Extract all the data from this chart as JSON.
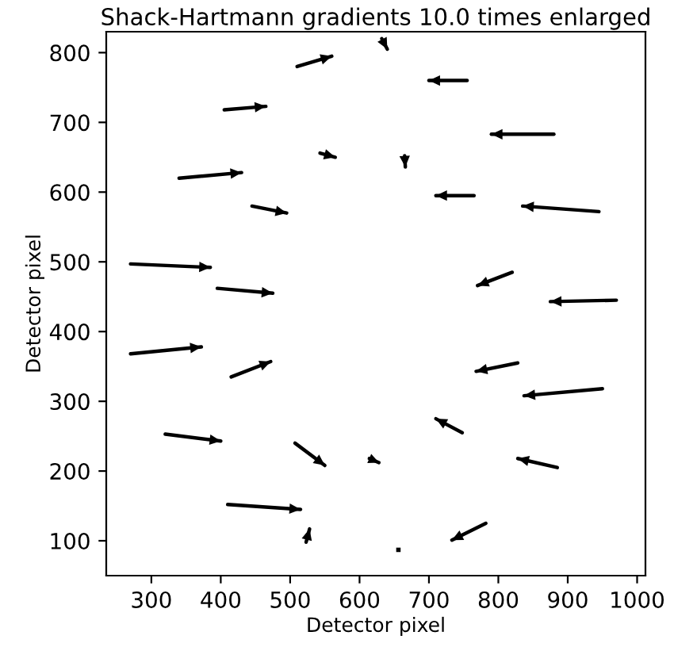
{
  "chart_data": {
    "type": "line",
    "title": "Shack-Hartmann gradients 10.0 times enlarged",
    "xlabel": "Detector pixel",
    "ylabel": "Detector pixel",
    "xlim": [
      235,
      1012
    ],
    "ylim": [
      50,
      830
    ],
    "xticks": [
      300,
      400,
      500,
      600,
      700,
      800,
      900,
      1000
    ],
    "yticks": [
      100,
      200,
      300,
      400,
      500,
      600,
      700,
      800
    ],
    "grid": false,
    "legend": false,
    "marker": "none",
    "line_style": "solid",
    "series": [
      {
        "type": "line",
        "color": "#000000",
        "x": [
          270,
          372
        ],
        "values": [
          368,
          378
        ]
      },
      {
        "type": "line",
        "color": "#000000",
        "x": [
          415,
          472
        ],
        "values": [
          335,
          357
        ]
      },
      {
        "type": "line",
        "color": "#000000",
        "x": [
          320,
          400
        ],
        "values": [
          253,
          243
        ]
      },
      {
        "type": "line",
        "color": "#000000",
        "x": [
          507,
          550
        ],
        "values": [
          240,
          208
        ]
      },
      {
        "type": "line",
        "color": "#000000",
        "x": [
          410,
          515
        ],
        "values": [
          152,
          145
        ]
      },
      {
        "type": "line",
        "color": "#000000",
        "x": [
          523,
          528
        ],
        "values": [
          98,
          117
        ]
      },
      {
        "type": "line",
        "color": "#000000",
        "x": [
          614,
          628
        ],
        "values": [
          218,
          212
        ]
      },
      {
        "type": "scatter",
        "marker": "square",
        "color": "#000000",
        "x": [
          656
        ],
        "values": [
          87
        ]
      },
      {
        "type": "line",
        "color": "#000000",
        "x": [
          270,
          385
        ],
        "values": [
          497,
          492
        ]
      },
      {
        "type": "line",
        "color": "#000000",
        "x": [
          395,
          475
        ],
        "values": [
          462,
          455
        ]
      },
      {
        "type": "line",
        "color": "#000000",
        "x": [
          340,
          430
        ],
        "values": [
          620,
          628
        ]
      },
      {
        "type": "line",
        "color": "#000000",
        "x": [
          445,
          495
        ],
        "values": [
          580,
          570
        ]
      },
      {
        "type": "line",
        "color": "#000000",
        "x": [
          405,
          465
        ],
        "values": [
          718,
          723
        ]
      },
      {
        "type": "line",
        "color": "#000000",
        "x": [
          510,
          560
        ],
        "values": [
          780,
          795
        ]
      },
      {
        "type": "line",
        "color": "#000000",
        "x": [
          543,
          565
        ],
        "values": [
          656,
          650
        ]
      },
      {
        "type": "line",
        "color": "#000000",
        "x": [
          632,
          640
        ],
        "values": [
          820,
          805
        ]
      },
      {
        "type": "line",
        "color": "#000000",
        "x": [
          665,
          666
        ],
        "values": [
          652,
          636
        ]
      },
      {
        "type": "line",
        "color": "#000000",
        "x": [
          755,
          700
        ],
        "values": [
          760,
          760
        ]
      },
      {
        "type": "line",
        "color": "#000000",
        "x": [
          880,
          790
        ],
        "values": [
          683,
          683
        ]
      },
      {
        "type": "line",
        "color": "#000000",
        "x": [
          765,
          710
        ],
        "values": [
          595,
          595
        ]
      },
      {
        "type": "line",
        "color": "#000000",
        "x": [
          945,
          835
        ],
        "values": [
          572,
          580
        ]
      },
      {
        "type": "line",
        "color": "#000000",
        "x": [
          820,
          770
        ],
        "values": [
          485,
          466
        ]
      },
      {
        "type": "line",
        "color": "#000000",
        "x": [
          970,
          875
        ],
        "values": [
          445,
          443
        ]
      },
      {
        "type": "line",
        "color": "#000000",
        "x": [
          828,
          768
        ],
        "values": [
          355,
          343
        ]
      },
      {
        "type": "line",
        "color": "#000000",
        "x": [
          950,
          837
        ],
        "values": [
          318,
          308
        ]
      },
      {
        "type": "line",
        "color": "#000000",
        "x": [
          748,
          710
        ],
        "values": [
          255,
          275
        ]
      },
      {
        "type": "line",
        "color": "#000000",
        "x": [
          885,
          828
        ],
        "values": [
          205,
          218
        ]
      },
      {
        "type": "line",
        "color": "#000000",
        "x": [
          782,
          733
        ],
        "values": [
          125,
          101
        ]
      }
    ]
  }
}
